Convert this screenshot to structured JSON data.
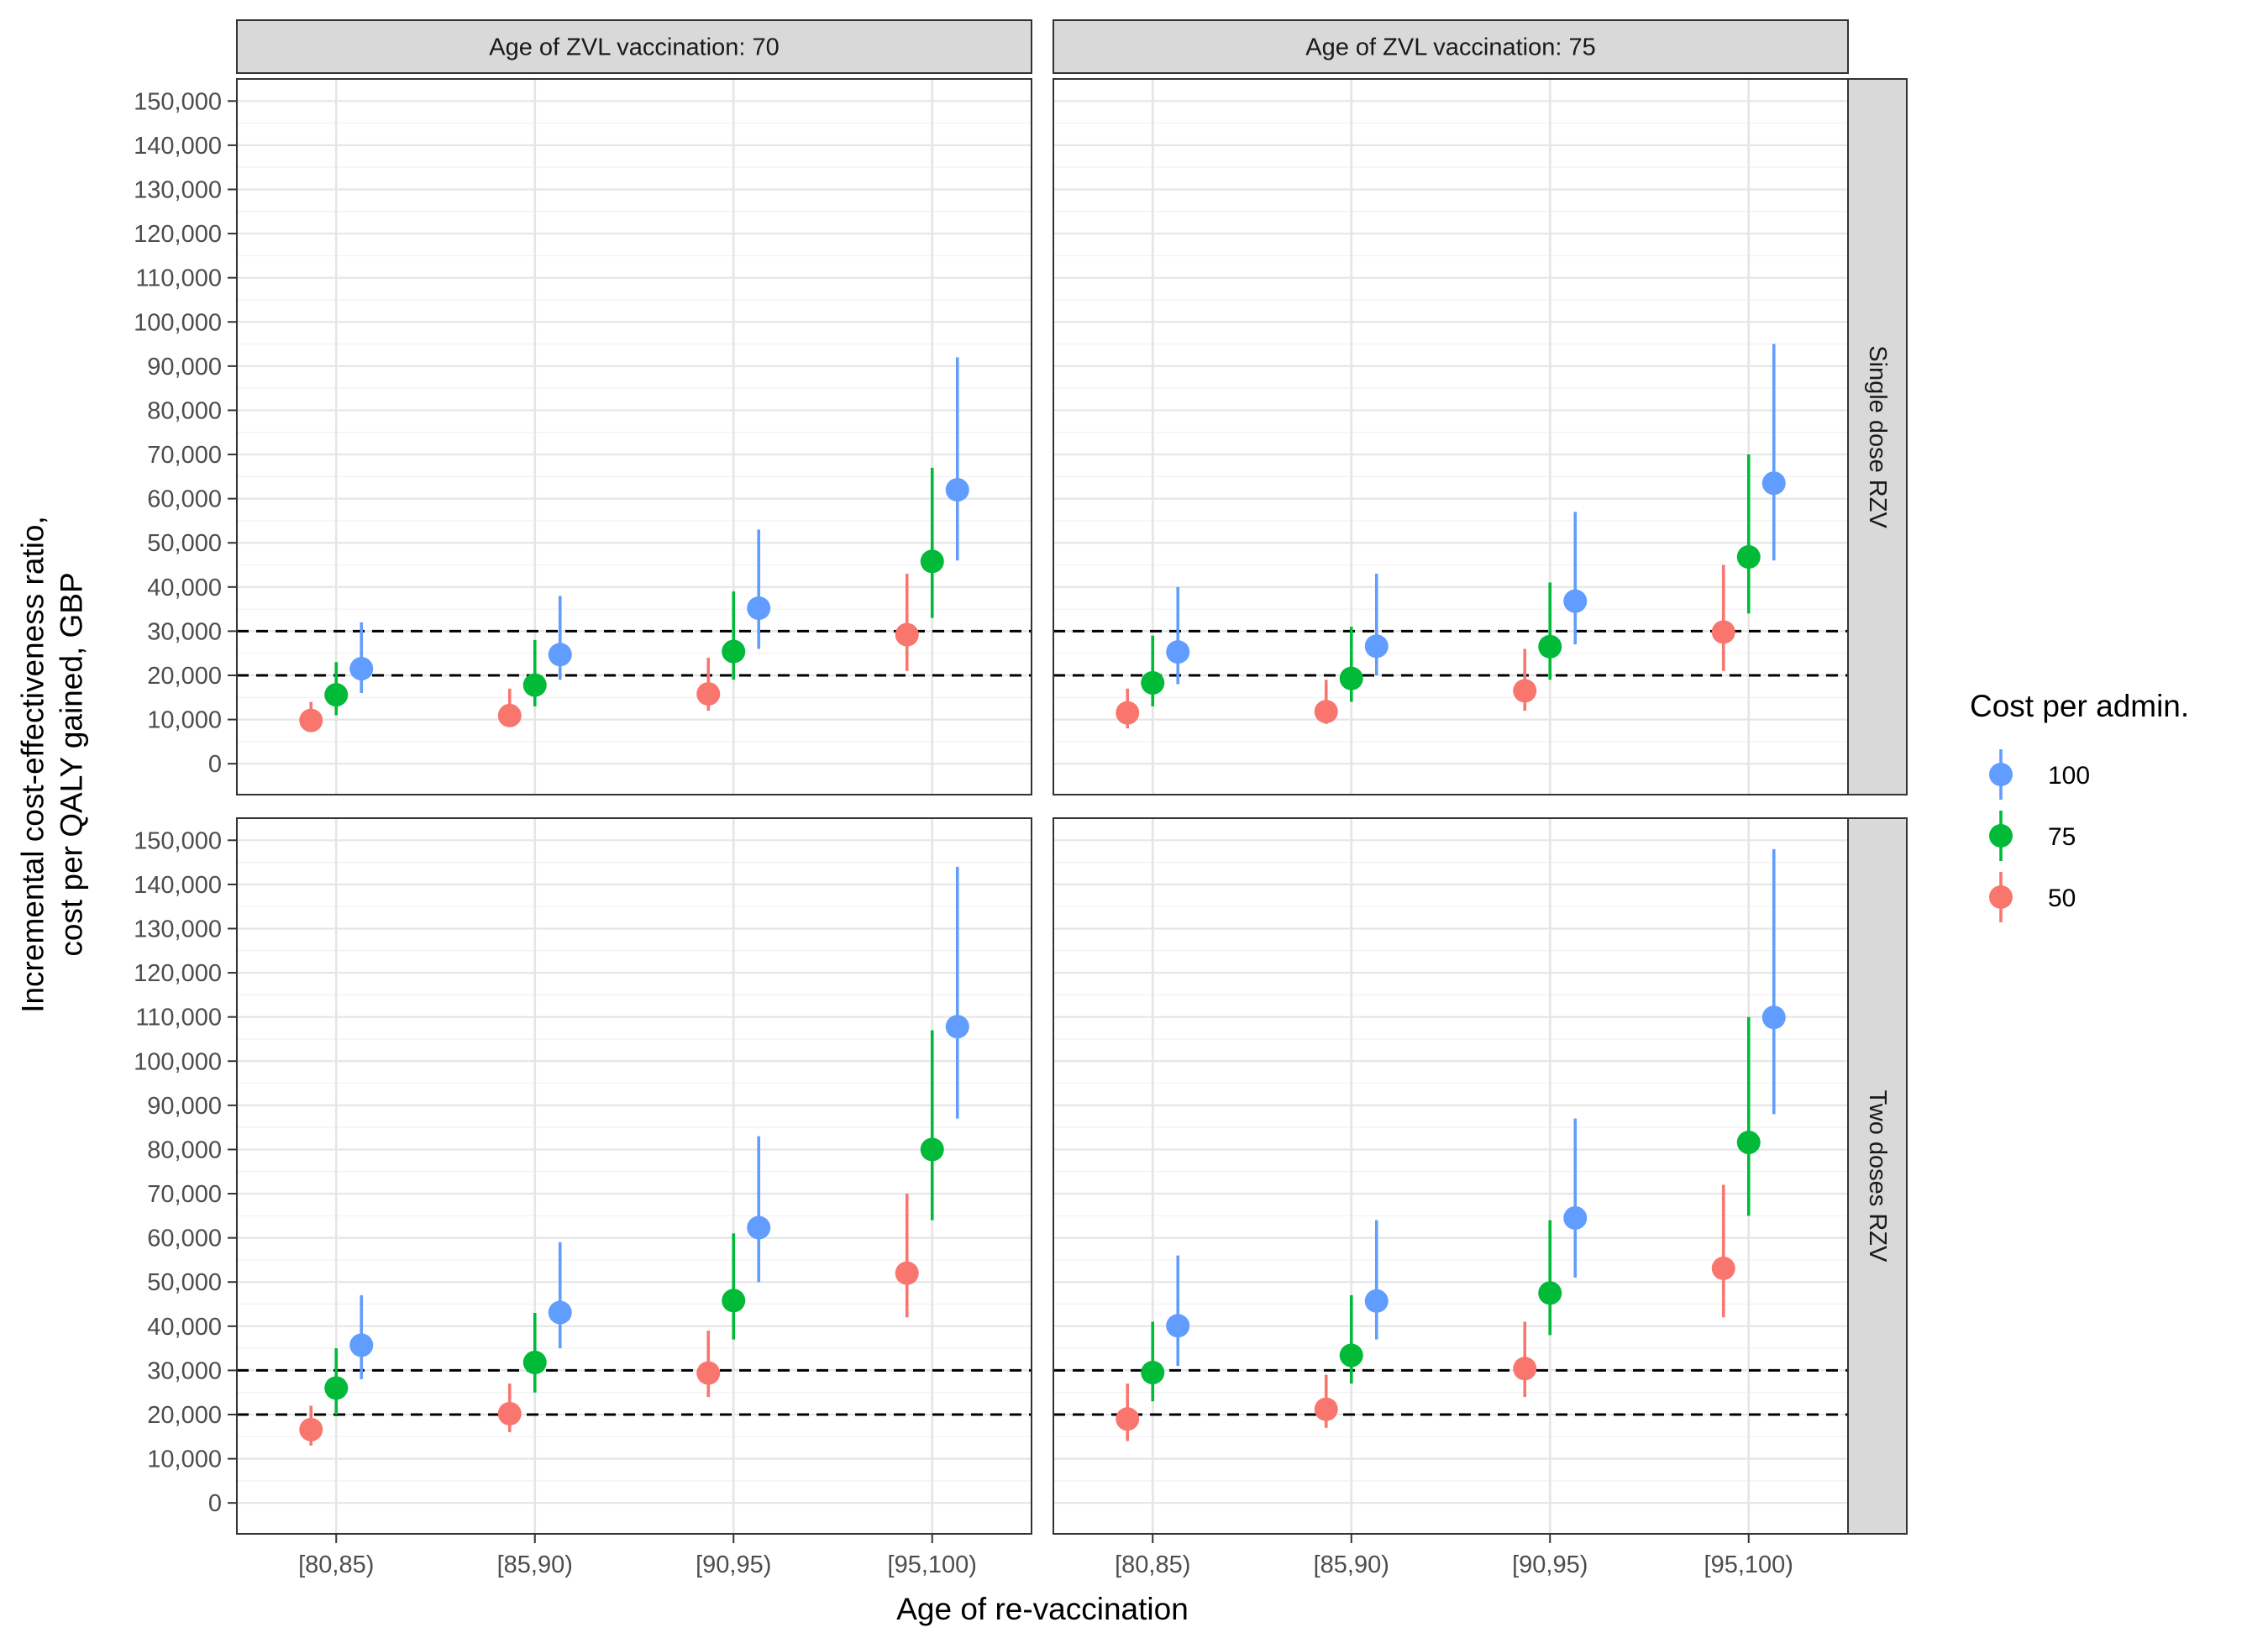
{
  "chart_data": {
    "type": "scatter",
    "subtype": "point-range faceted",
    "ylabel": "Incremental cost-effectiveness ratio,\ncost per QALY gained, GBP",
    "xlabel": "Age of re-vaccination",
    "categories": [
      "[80,85)",
      "[85,90)",
      "[90,95)",
      "[95,100)"
    ],
    "ylim": [
      -7000,
      155000
    ],
    "y_ticks": [
      0,
      10000,
      20000,
      30000,
      40000,
      50000,
      60000,
      70000,
      80000,
      90000,
      100000,
      110000,
      120000,
      130000,
      140000,
      150000
    ],
    "y_tick_labels": [
      "0",
      "10,000",
      "20,000",
      "30,000",
      "40,000",
      "50,000",
      "60,000",
      "70,000",
      "80,000",
      "90,000",
      "100,000",
      "110,000",
      "120,000",
      "130,000",
      "140,000",
      "150,000"
    ],
    "reference_lines": [
      20000,
      30000
    ],
    "grid": true,
    "column_facets": [
      "Age of ZVL vaccination: 70",
      "Age of ZVL vaccination: 75"
    ],
    "row_facets": [
      "Single dose RZV",
      "Two doses RZV"
    ],
    "legend": {
      "title": "Cost per admin.",
      "position": "right",
      "items": [
        {
          "label": "100",
          "color": "#619CFF"
        },
        {
          "label": "75",
          "color": "#00BA38"
        },
        {
          "label": "50",
          "color": "#F8766D"
        }
      ]
    },
    "series_order": [
      "50",
      "75",
      "100"
    ],
    "series_colors": {
      "50": "#F8766D",
      "75": "#00BA38",
      "100": "#619CFF"
    },
    "panels": [
      {
        "row": 0,
        "col": 0,
        "series": [
          {
            "name": "50",
            "values": [
              9800,
              10900,
              15800,
              29200
            ],
            "lower": [
              8000,
              9000,
              12000,
              21000
            ],
            "upper": [
              14000,
              17000,
              24000,
              43000
            ]
          },
          {
            "name": "75",
            "values": [
              15600,
              17800,
              25400,
              45800
            ],
            "lower": [
              11000,
              13000,
              19000,
              33000
            ],
            "upper": [
              23000,
              28000,
              39000,
              67000
            ]
          },
          {
            "name": "100",
            "values": [
              21500,
              24700,
              35200,
              62000
            ],
            "lower": [
              16000,
              19000,
              26000,
              46000
            ],
            "upper": [
              32000,
              38000,
              53000,
              92000
            ]
          }
        ]
      },
      {
        "row": 0,
        "col": 1,
        "series": [
          {
            "name": "50",
            "values": [
              11500,
              11800,
              16500,
              29800
            ],
            "lower": [
              8000,
              9000,
              12000,
              21000
            ],
            "upper": [
              17000,
              19000,
              26000,
              45000
            ]
          },
          {
            "name": "75",
            "values": [
              18300,
              19300,
              26500,
              46800
            ],
            "lower": [
              13000,
              14000,
              19000,
              34000
            ],
            "upper": [
              29000,
              31000,
              41000,
              70000
            ]
          },
          {
            "name": "100",
            "values": [
              25300,
              26600,
              36800,
              63500
            ],
            "lower": [
              18000,
              20000,
              27000,
              46000
            ],
            "upper": [
              40000,
              43000,
              57000,
              95000
            ]
          }
        ]
      },
      {
        "row": 1,
        "col": 0,
        "series": [
          {
            "name": "50",
            "values": [
              16600,
              20200,
              29400,
              52000
            ],
            "lower": [
              13000,
              16000,
              24000,
              42000
            ],
            "upper": [
              22000,
              27000,
              39000,
              70000
            ]
          },
          {
            "name": "75",
            "values": [
              26000,
              31800,
              45800,
              80000
            ],
            "lower": [
              20000,
              25000,
              37000,
              64000
            ],
            "upper": [
              35000,
              43000,
              61000,
              107000
            ]
          },
          {
            "name": "100",
            "values": [
              35700,
              43100,
              62300,
              107800
            ],
            "lower": [
              28000,
              35000,
              50000,
              87000
            ],
            "upper": [
              47000,
              59000,
              83000,
              144000
            ]
          }
        ]
      },
      {
        "row": 1,
        "col": 1,
        "series": [
          {
            "name": "50",
            "values": [
              19000,
              21200,
              30400,
              53100
            ],
            "lower": [
              14000,
              17000,
              24000,
              42000
            ],
            "upper": [
              27000,
              29000,
              41000,
              72000
            ]
          },
          {
            "name": "75",
            "values": [
              29500,
              33400,
              47500,
              81600
            ],
            "lower": [
              23000,
              27000,
              38000,
              65000
            ],
            "upper": [
              41000,
              47000,
              64000,
              110000
            ]
          },
          {
            "name": "100",
            "values": [
              40100,
              45700,
              64500,
              109900
            ],
            "lower": [
              31000,
              37000,
              51000,
              88000
            ],
            "upper": [
              56000,
              64000,
              87000,
              148000
            ]
          }
        ]
      }
    ]
  }
}
